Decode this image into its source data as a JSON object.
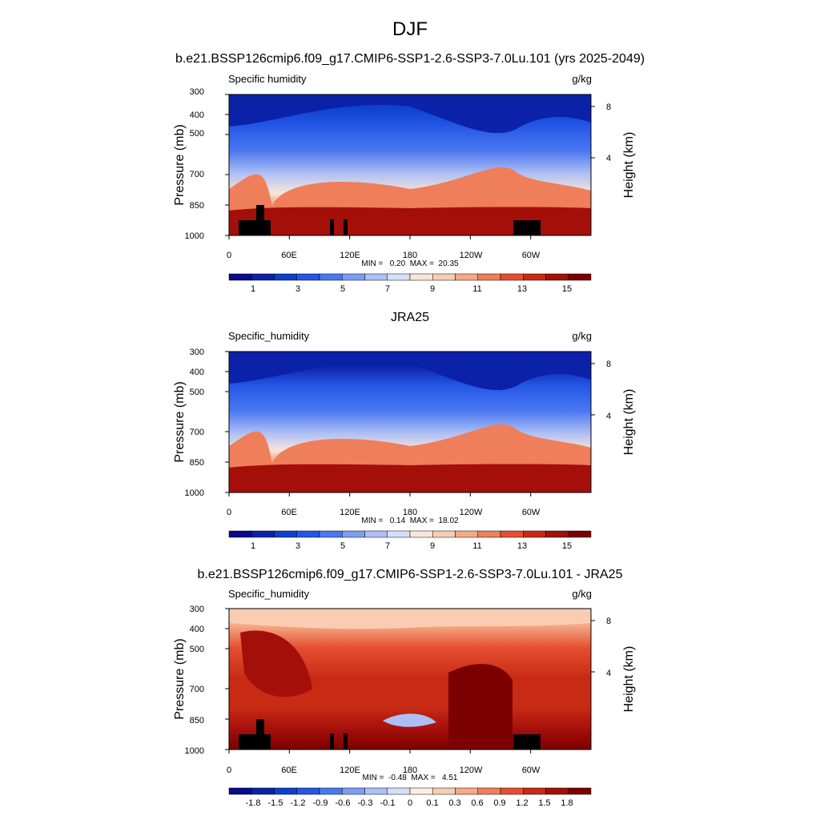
{
  "page": {
    "season": "DJF",
    "model_title": "b.e21.BSSP126cmip6.f09_g17.CMIP6-SSP1-2.6-SSP3-7.0Lu.101 (yrs 2025-2049)"
  },
  "palettes": {
    "seq": [
      "#0a0a8a",
      "#0b22a8",
      "#0d3fcc",
      "#2456e6",
      "#4a78f0",
      "#7c9ef2",
      "#aebff5",
      "#d4e0fa",
      "#f7e6da",
      "#f9cdb2",
      "#f5a985",
      "#ef7e5b",
      "#e44e2f",
      "#c82a14",
      "#a40f0a",
      "#7c0000"
    ],
    "diff": [
      "#0a0a8a",
      "#0b22a8",
      "#0d3fcc",
      "#2456e6",
      "#4a78f0",
      "#7c9ef2",
      "#aebff5",
      "#d4e0fa",
      "#fbeee2",
      "#f9cdb2",
      "#f5a985",
      "#ef7e5b",
      "#e44e2f",
      "#c82a14",
      "#a40f0a",
      "#7c0000"
    ]
  },
  "chart_data": [
    {
      "type": "heatmap",
      "title": "",
      "left_label": "Specific humidity",
      "units": "g/kg",
      "ylabel": "Pressure (mb)",
      "ylabel_right": "Height (km)",
      "x_ticks": [
        "0",
        "60E",
        "120E",
        "180",
        "120W",
        "60W"
      ],
      "y_ticks": [
        "300",
        "400",
        "500",
        "700",
        "850",
        "1000"
      ],
      "height_ticks": [
        "8",
        "4"
      ],
      "stats": "MIN =   0.20  MAX =  20.35",
      "colorbar_labels": [
        "1",
        "3",
        "5",
        "7",
        "9",
        "11",
        "13",
        "15"
      ],
      "palette": "seq",
      "min": 0.2,
      "max": 20.35
    },
    {
      "type": "heatmap",
      "title": "JRA25",
      "left_label": "Specific_humidity",
      "units": "g/kg",
      "ylabel": "Pressure (mb)",
      "ylabel_right": "Height (km)",
      "x_ticks": [
        "0",
        "60E",
        "120E",
        "180",
        "120W",
        "60W"
      ],
      "y_ticks": [
        "300",
        "400",
        "500",
        "700",
        "850",
        "1000"
      ],
      "height_ticks": [
        "8",
        "4"
      ],
      "stats": "MIN =   0.14  MAX =  18.02",
      "colorbar_labels": [
        "1",
        "3",
        "5",
        "7",
        "9",
        "11",
        "13",
        "15"
      ],
      "palette": "seq",
      "min": 0.14,
      "max": 18.02
    },
    {
      "type": "heatmap",
      "title": "b.e21.BSSP126cmip6.f09_g17.CMIP6-SSP1-2.6-SSP3-7.0Lu.101 - JRA25",
      "left_label": "Specific_humidity",
      "units": "g/kg",
      "ylabel": "Pressure (mb)",
      "ylabel_right": "Height (km)",
      "x_ticks": [
        "0",
        "60E",
        "120E",
        "180",
        "120W",
        "60W"
      ],
      "y_ticks": [
        "300",
        "400",
        "500",
        "700",
        "850",
        "1000"
      ],
      "height_ticks": [
        "8",
        "4"
      ],
      "stats": "MIN =  -0.48  MAX =   4.51",
      "colorbar_labels": [
        "-1.8",
        "-1.5",
        "-1.2",
        "-0.9",
        "-0.6",
        "-0.3",
        "-0.1",
        "0",
        "0.1",
        "0.3",
        "0.6",
        "0.9",
        "1.2",
        "1.5",
        "1.8"
      ],
      "palette": "diff",
      "min": -0.48,
      "max": 4.51
    }
  ]
}
